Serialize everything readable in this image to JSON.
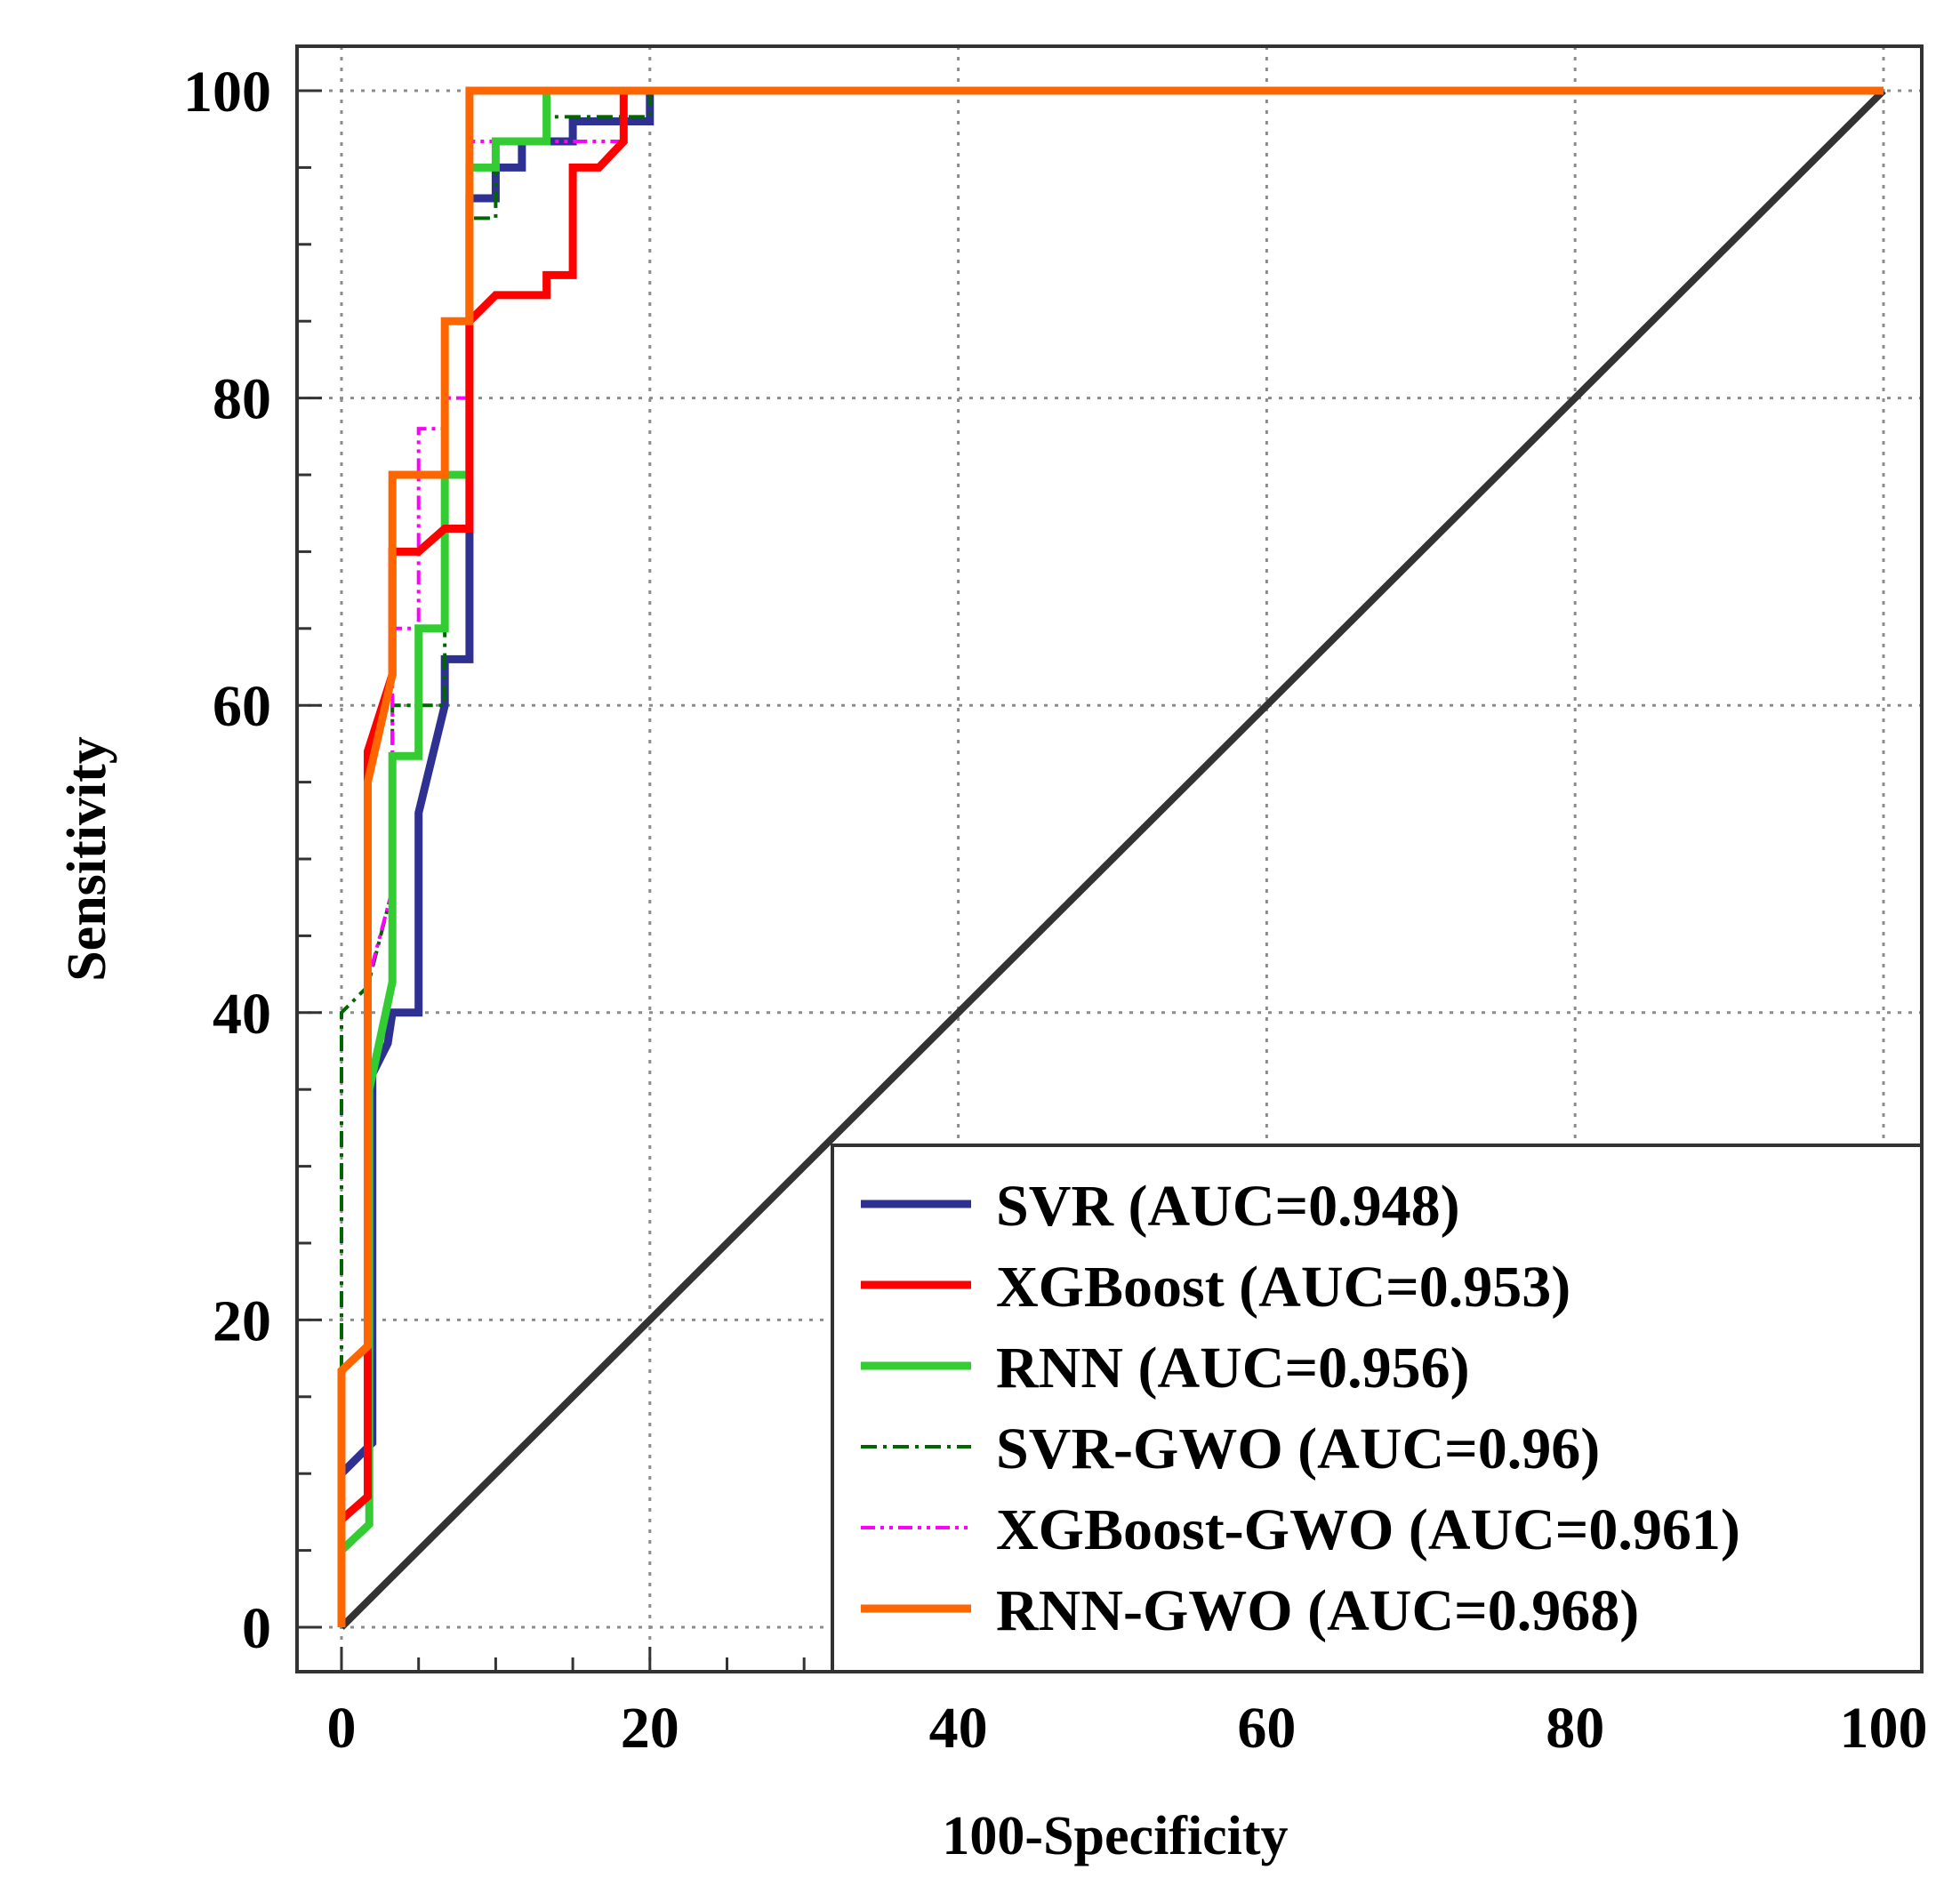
{
  "chart_data": {
    "type": "line",
    "title": "",
    "xlabel": "100-Specificity",
    "ylabel": "Sensitivity",
    "xlim": [
      -3,
      103
    ],
    "ylim": [
      -3,
      103
    ],
    "grid": true,
    "legend_position": "bottom-right",
    "x_ticks": [
      0,
      20,
      40,
      60,
      80,
      100
    ],
    "y_ticks": [
      0,
      20,
      40,
      60,
      80,
      100
    ],
    "x_minor_ticks": [
      5,
      10,
      15,
      25,
      30
    ],
    "y_minor_ticks": [
      5,
      10,
      15,
      25,
      30,
      35,
      45,
      50,
      55,
      65,
      70,
      75,
      85,
      90,
      95
    ],
    "diagonal": {
      "name": "reference",
      "color": "#333333",
      "points": [
        [
          0,
          0
        ],
        [
          100,
          100
        ]
      ]
    },
    "series": [
      {
        "name": "SVR (AUC=0.948)",
        "color": "#2e3192",
        "dash": "solid",
        "points": [
          [
            0,
            0
          ],
          [
            0,
            10
          ],
          [
            2,
            12
          ],
          [
            2,
            36
          ],
          [
            3,
            38
          ],
          [
            3.3,
            40
          ],
          [
            5,
            40
          ],
          [
            5,
            53
          ],
          [
            6.7,
            60
          ],
          [
            6.7,
            63
          ],
          [
            8.3,
            63
          ],
          [
            8.3,
            93
          ],
          [
            10,
            93
          ],
          [
            10,
            95
          ],
          [
            11.7,
            95
          ],
          [
            11.7,
            96.7
          ],
          [
            15,
            96.7
          ],
          [
            15,
            98
          ],
          [
            20,
            98
          ],
          [
            20,
            100
          ],
          [
            100,
            100
          ]
        ]
      },
      {
        "name": "XGBoost (AUC=0.953)",
        "color": "#ff0000",
        "dash": "solid",
        "points": [
          [
            0,
            0
          ],
          [
            0,
            7
          ],
          [
            1.7,
            8.5
          ],
          [
            1.7,
            57
          ],
          [
            3.3,
            62
          ],
          [
            3.3,
            70
          ],
          [
            5,
            70
          ],
          [
            6.7,
            71.5
          ],
          [
            8.3,
            71.5
          ],
          [
            8.3,
            85
          ],
          [
            10,
            86.7
          ],
          [
            13.3,
            86.7
          ],
          [
            13.3,
            88
          ],
          [
            15,
            88
          ],
          [
            15,
            95
          ],
          [
            16.7,
            95
          ],
          [
            18.3,
            96.7
          ],
          [
            18.3,
            100
          ],
          [
            100,
            100
          ]
        ]
      },
      {
        "name": "RNN (AUC=0.956)",
        "color": "#33cc33",
        "dash": "solid",
        "points": [
          [
            0,
            0
          ],
          [
            0,
            5
          ],
          [
            1.8,
            6.7
          ],
          [
            1.8,
            35
          ],
          [
            3.3,
            42
          ],
          [
            3.3,
            56.7
          ],
          [
            5,
            56.7
          ],
          [
            5,
            65
          ],
          [
            6.7,
            65
          ],
          [
            6.7,
            75
          ],
          [
            8.3,
            75
          ],
          [
            8.3,
            95
          ],
          [
            10,
            95
          ],
          [
            10,
            96.7
          ],
          [
            13.3,
            96.7
          ],
          [
            13.3,
            100
          ],
          [
            100,
            100
          ]
        ]
      },
      {
        "name": "SVR-GWO (AUC=0.96)",
        "color": "#006600",
        "dash": "dashdot",
        "points": [
          [
            0,
            0
          ],
          [
            0,
            40
          ],
          [
            1.7,
            41.7
          ],
          [
            3.3,
            48
          ],
          [
            3.3,
            60
          ],
          [
            6.7,
            60
          ],
          [
            6.7,
            75
          ],
          [
            8.3,
            75
          ],
          [
            8.3,
            91.7
          ],
          [
            10,
            91.7
          ],
          [
            10,
            96.7
          ],
          [
            13.3,
            96.7
          ],
          [
            13.3,
            98.3
          ],
          [
            20,
            98.3
          ],
          [
            20,
            100
          ],
          [
            100,
            100
          ]
        ]
      },
      {
        "name": "XGBoost-GWO (AUC=0.961)",
        "color": "#ff00ff",
        "dash": "dashdotdot",
        "points": [
          [
            0,
            0
          ],
          [
            0,
            5
          ],
          [
            1.7,
            6.7
          ],
          [
            1.7,
            42
          ],
          [
            3.3,
            48
          ],
          [
            3.3,
            65
          ],
          [
            5,
            65
          ],
          [
            5,
            78
          ],
          [
            6.7,
            78
          ],
          [
            6.7,
            80
          ],
          [
            8.3,
            80
          ],
          [
            8.3,
            96.7
          ],
          [
            18.3,
            96.7
          ],
          [
            18.3,
            100
          ],
          [
            100,
            100
          ]
        ]
      },
      {
        "name": "RNN-GWO (AUC=0.968)",
        "color": "#ff6600",
        "dash": "solid",
        "points": [
          [
            0,
            0
          ],
          [
            0,
            16.7
          ],
          [
            1.7,
            18.3
          ],
          [
            1.7,
            55
          ],
          [
            3.3,
            62
          ],
          [
            3.3,
            75
          ],
          [
            6.7,
            75
          ],
          [
            6.7,
            85
          ],
          [
            8.3,
            85
          ],
          [
            8.3,
            100
          ],
          [
            100,
            100
          ]
        ]
      }
    ]
  }
}
